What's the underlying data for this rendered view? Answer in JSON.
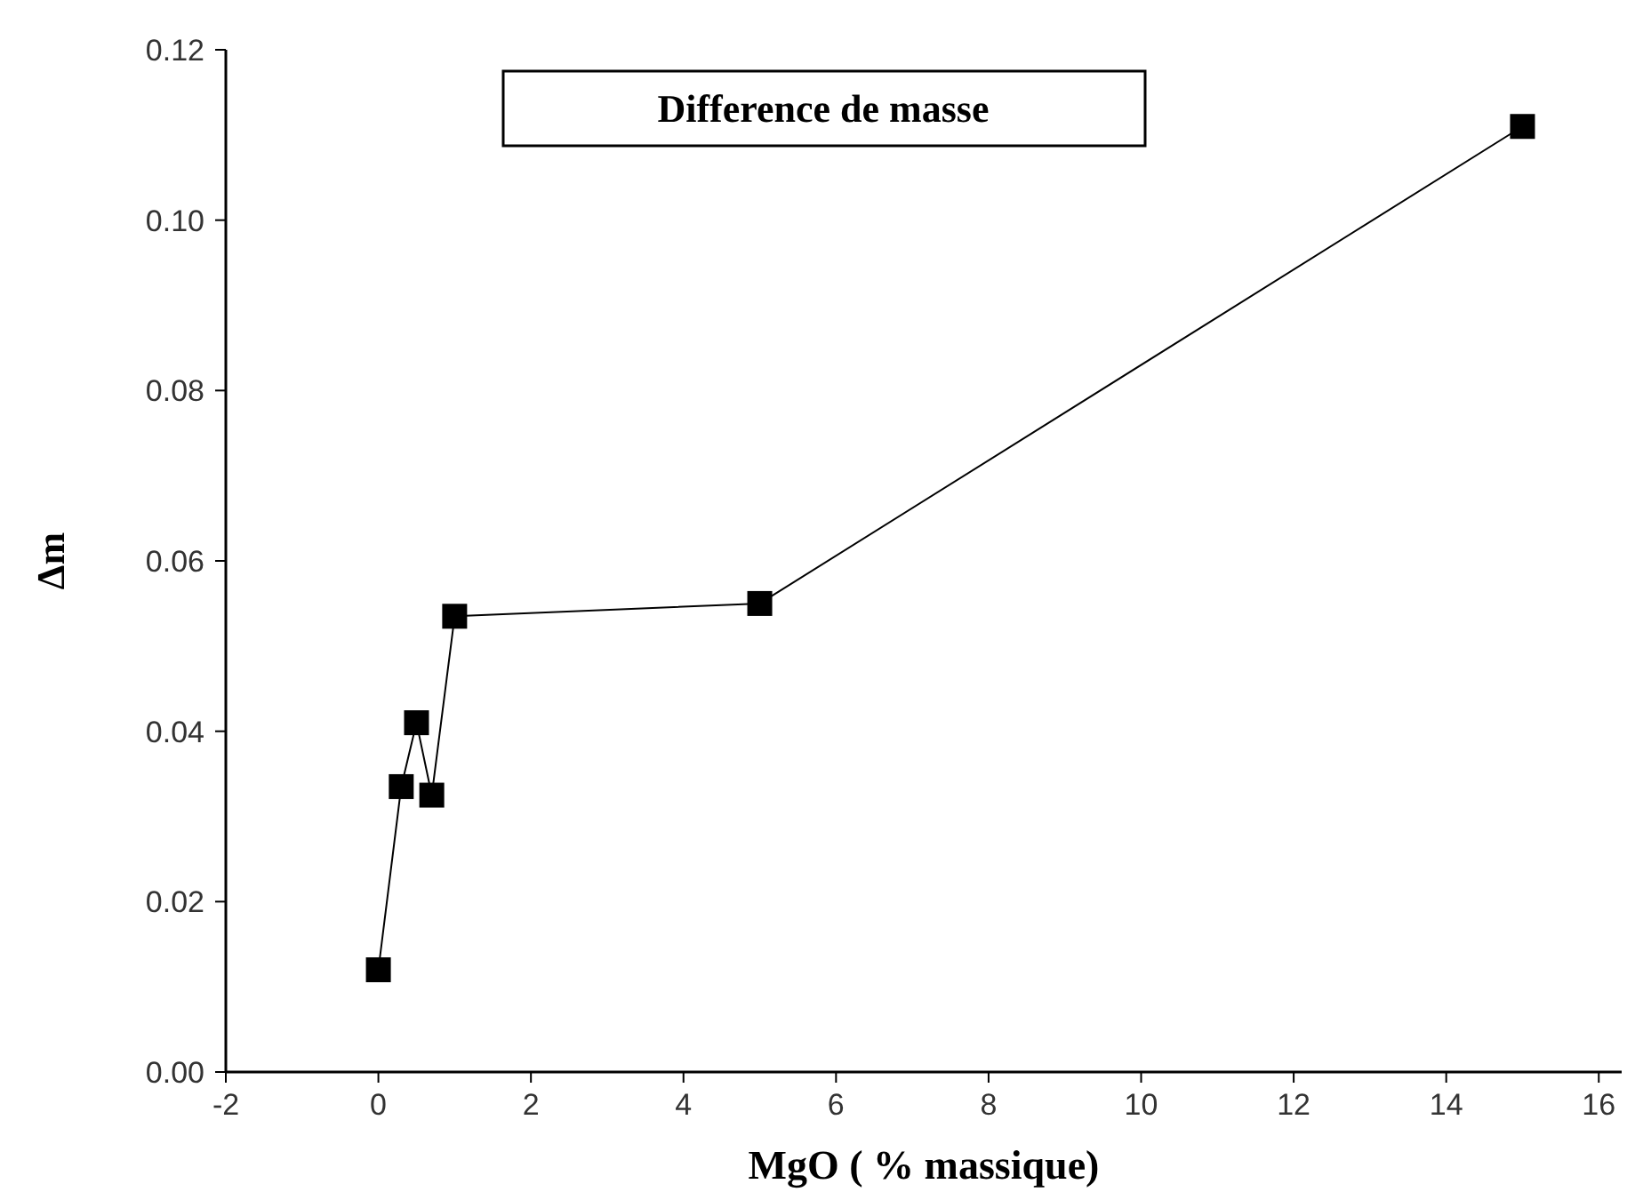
{
  "chart_data": {
    "type": "line",
    "title": "Difference de masse",
    "xlabel": "MgO ( % massique)",
    "ylabel": "Δm",
    "x": [
      0,
      0.3,
      0.5,
      0.7,
      1,
      5,
      15
    ],
    "series": [
      {
        "color": "#000000",
        "values": [
          0.012,
          0.0335,
          0.041,
          0.0325,
          0.0535,
          0.055,
          0.111
        ]
      }
    ],
    "xlim": [
      -2,
      16.3
    ],
    "xticks": [
      -2,
      0,
      2,
      4,
      6,
      8,
      10,
      12,
      14,
      16
    ],
    "ylim": [
      0,
      0.12
    ],
    "yticks": [
      {
        "value": 0,
        "label": "0.00"
      },
      {
        "value": 0.02,
        "label": "0.02"
      },
      {
        "value": 0.04,
        "label": "0.04"
      },
      {
        "value": 0.06,
        "label": "0.06"
      },
      {
        "value": 0.08,
        "label": "0.08"
      },
      {
        "value": 0.1,
        "label": "0.10"
      },
      {
        "value": 0.12,
        "label": "0.12"
      }
    ],
    "marker": "square",
    "line_style": "solid",
    "grid": false
  }
}
